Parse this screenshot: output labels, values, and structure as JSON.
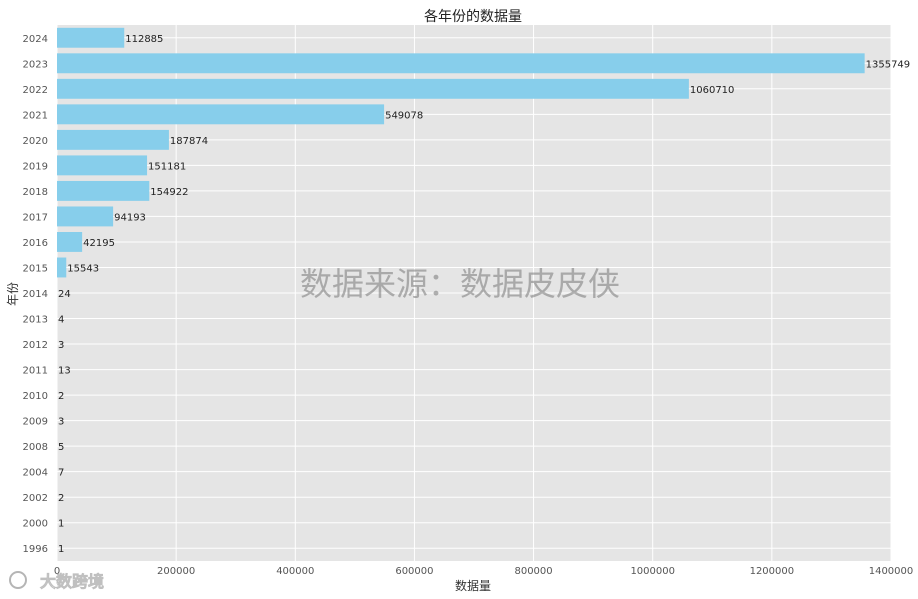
{
  "chart_data": {
    "type": "bar",
    "orientation": "horizontal",
    "title": "各年份的数据量",
    "xlabel": "数据量",
    "ylabel": "年份",
    "xlim": [
      0,
      1400000
    ],
    "xticks": [
      "0",
      "200000",
      "400000",
      "600000",
      "800000",
      "1000000",
      "1200000",
      "1400000"
    ],
    "xtick_values": [
      0,
      200000,
      400000,
      600000,
      800000,
      1000000,
      1200000,
      1400000
    ],
    "categories": [
      "2024",
      "2023",
      "2022",
      "2021",
      "2020",
      "2019",
      "2018",
      "2017",
      "2016",
      "2015",
      "2014",
      "2013",
      "2012",
      "2011",
      "2010",
      "2009",
      "2008",
      "2004",
      "2002",
      "2000",
      "1996"
    ],
    "values": [
      112885,
      1355749,
      1060710,
      549078,
      187874,
      151181,
      154922,
      94193,
      42195,
      15543,
      24,
      4,
      3,
      13,
      2,
      3,
      5,
      7,
      2,
      1,
      1
    ],
    "grid": true,
    "bar_color": "#87ceeb",
    "background_color": "#e5e5e5",
    "grid_color": "#ffffff"
  },
  "watermark": "数据来源：数据皮皮侠",
  "logo_text": "大数跨境"
}
